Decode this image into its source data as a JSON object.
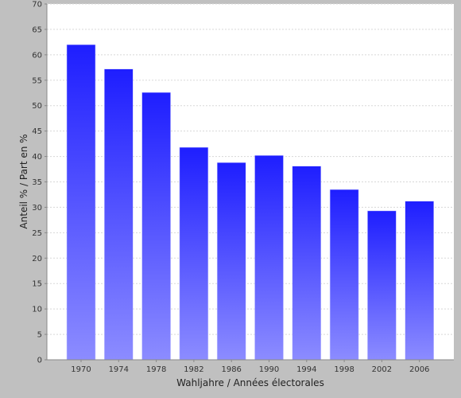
{
  "chart_data": {
    "type": "bar",
    "title": "",
    "xlabel": "Wahljahre / Années électorales",
    "ylabel": "Anteil % / Part en %",
    "categories": [
      "1970",
      "1974",
      "1978",
      "1982",
      "1986",
      "1990",
      "1994",
      "1998",
      "2002",
      "2006"
    ],
    "values": [
      62.0,
      57.2,
      52.6,
      41.8,
      38.8,
      40.2,
      38.1,
      33.5,
      29.3,
      31.2
    ],
    "ylim": [
      0,
      70
    ],
    "yticks": [
      0,
      5,
      10,
      15,
      20,
      25,
      30,
      35,
      40,
      45,
      50,
      55,
      60,
      65,
      70
    ],
    "grid": true,
    "legend": "none",
    "colors": {
      "background": "#c0c0c0",
      "plot_background": "#ffffff",
      "bar_top": "#1e1eff",
      "bar_bottom": "#8c8cff",
      "gridline": "#d8d8d8"
    }
  }
}
